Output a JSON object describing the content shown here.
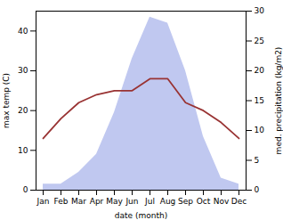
{
  "chart_data": {
    "type": "line",
    "categories": [
      "Jan",
      "Feb",
      "Mar",
      "Apr",
      "May",
      "Jun",
      "Jul",
      "Aug",
      "Sep",
      "Oct",
      "Nov",
      "Dec"
    ],
    "xlabel": "date (month)",
    "ylabel": "max temp (C)",
    "y2label": "med. precipitation (kg/m2)",
    "ylim": [
      0,
      45
    ],
    "yticks": [
      0,
      10,
      20,
      30,
      40
    ],
    "y2lim": [
      0,
      30
    ],
    "y2ticks": [
      0,
      5,
      10,
      15,
      20,
      25,
      30
    ],
    "grid": false,
    "series": [
      {
        "type": "area",
        "axis": "y2",
        "color": "#c0c8f0",
        "values": [
          1,
          1,
          3,
          6,
          13,
          22,
          29,
          28,
          20,
          9,
          2,
          1
        ]
      },
      {
        "type": "line",
        "color": "#993333",
        "values": [
          13,
          18,
          22,
          24,
          25,
          25,
          28,
          28,
          22,
          20,
          17,
          13
        ]
      }
    ]
  }
}
